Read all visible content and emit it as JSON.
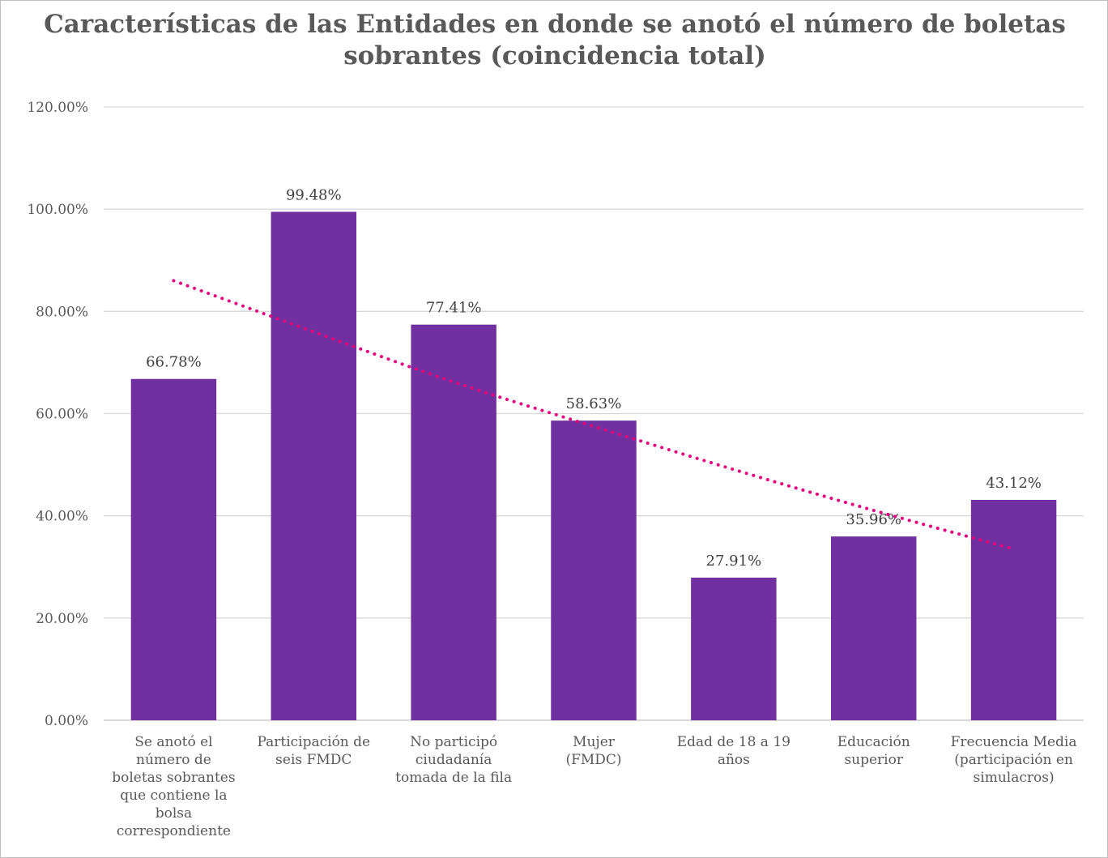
{
  "chart_data": {
    "type": "bar",
    "title": "Características de las Entidades en donde se anotó el número de boletas sobrantes (coincidencia total)",
    "categories": [
      [
        "Se anotó el",
        "número de",
        "boletas sobrantes",
        "que contiene la",
        "bolsa",
        "correspondiente"
      ],
      [
        "Participación de",
        "seis FMDC"
      ],
      [
        "No participó",
        "ciudadanía",
        "tomada de la fila"
      ],
      [
        "Mujer",
        "(FMDC)"
      ],
      [
        "Edad de 18 a 19",
        "años"
      ],
      [
        "Educación",
        "superior"
      ],
      [
        "Frecuencia Media",
        "(participación en",
        "simulacros)"
      ]
    ],
    "values": [
      66.78,
      99.48,
      77.41,
      58.63,
      27.91,
      35.96,
      43.12
    ],
    "data_labels": [
      "66.78%",
      "99.48%",
      "77.41%",
      "58.63%",
      "27.91%",
      "35.96%",
      "43.12%"
    ],
    "ylim": [
      0,
      120
    ],
    "yticks": [
      0,
      20,
      40,
      60,
      80,
      100,
      120
    ],
    "ytick_labels": [
      "0.00%",
      "20.00%",
      "40.00%",
      "60.00%",
      "80.00%",
      "100.00%",
      "120.00%"
    ],
    "grid": true,
    "legend": "none",
    "trendline": {
      "type": "dotted",
      "values": [
        86,
        76,
        66,
        57.5,
        49,
        41,
        33.5
      ]
    },
    "colors": {
      "bar": "#7030A0",
      "trendline": "#E6007E",
      "grid": "#d9d9d9",
      "axis": "#bfbfbf"
    }
  }
}
